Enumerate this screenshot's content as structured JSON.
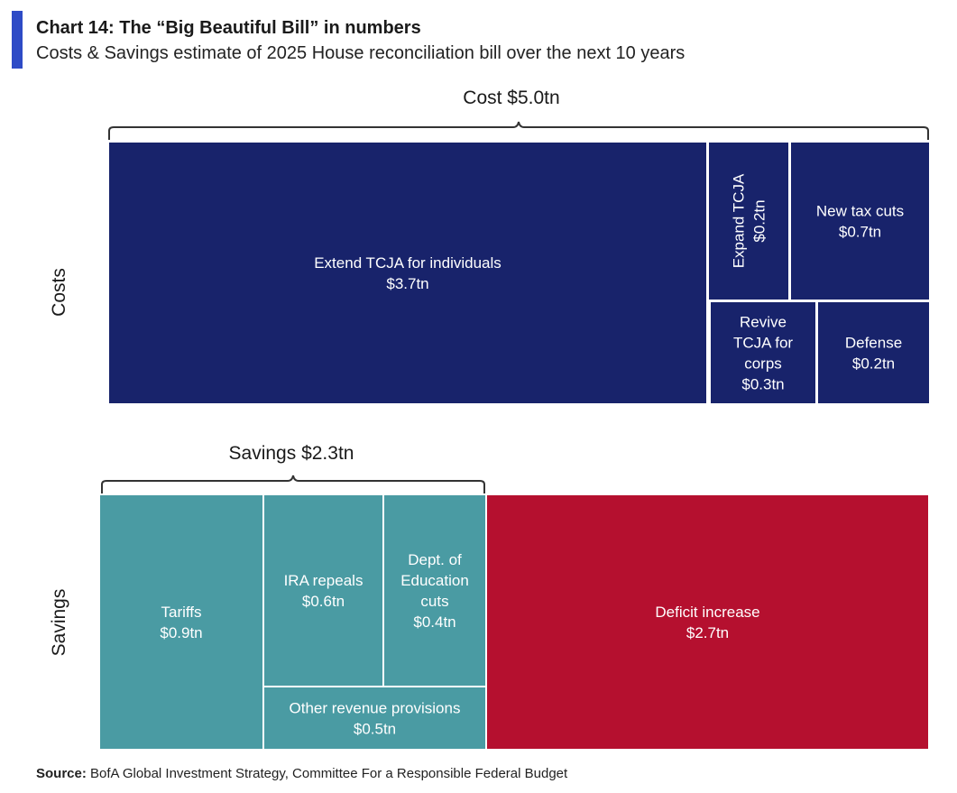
{
  "header": {
    "title": "Chart 14: The “Big Beautiful Bill” in numbers",
    "subtitle": "Costs & Savings estimate of 2025 House reconciliation bill over the next 10 years"
  },
  "footer": {
    "source_label": "Source:",
    "source_text": "BofA Global Investment Strategy, Committee For a Responsible Federal Budget"
  },
  "colors": {
    "costs": "#18236b",
    "savings": "#4a9ba3",
    "deficit": "#b5102f",
    "accent": "#2e4bc6"
  },
  "chart_data": {
    "type": "treemap",
    "unit": "$tn",
    "horizon": "next 10 years",
    "rows": [
      {
        "name": "Costs",
        "total_label": "Cost $5.0tn",
        "total": 5.0,
        "items": [
          {
            "id": "extend-tcja",
            "label": [
              "Extend TCJA for individuals",
              "$3.7tn"
            ],
            "value": 3.7,
            "group": "costs"
          },
          {
            "id": "expand-tcja",
            "label": [
              "Expand TCJA",
              "$0.2tn"
            ],
            "value": 0.2,
            "group": "costs"
          },
          {
            "id": "new-tax-cuts",
            "label": [
              "New tax cuts",
              "$0.7tn"
            ],
            "value": 0.7,
            "group": "costs"
          },
          {
            "id": "revive-tcja-corps",
            "label": [
              "Revive",
              "TCJA for",
              "corps",
              "$0.3tn"
            ],
            "value": 0.3,
            "group": "costs"
          },
          {
            "id": "defense",
            "label": [
              "Defense",
              "$0.2tn"
            ],
            "value": 0.2,
            "group": "costs"
          }
        ]
      },
      {
        "name": "Savings",
        "total_label": "Savings $2.3tn",
        "total": 2.3,
        "items": [
          {
            "id": "tariffs",
            "label": [
              "Tariffs",
              "$0.9tn"
            ],
            "value": 0.9,
            "group": "savings"
          },
          {
            "id": "ira-repeals",
            "label": [
              "IRA repeals",
              "$0.6tn"
            ],
            "value": 0.6,
            "group": "savings"
          },
          {
            "id": "education-cuts",
            "label": [
              "Dept. of",
              "Education",
              "cuts",
              "$0.4tn"
            ],
            "value": 0.4,
            "group": "savings"
          },
          {
            "id": "other-revenue",
            "label": [
              "Other revenue provisions",
              "$0.5tn"
            ],
            "value": 0.5,
            "group": "savings"
          },
          {
            "id": "deficit-increase",
            "label": [
              "Deficit increase",
              "$2.7tn"
            ],
            "value": 2.7,
            "group": "deficit"
          }
        ]
      }
    ]
  }
}
